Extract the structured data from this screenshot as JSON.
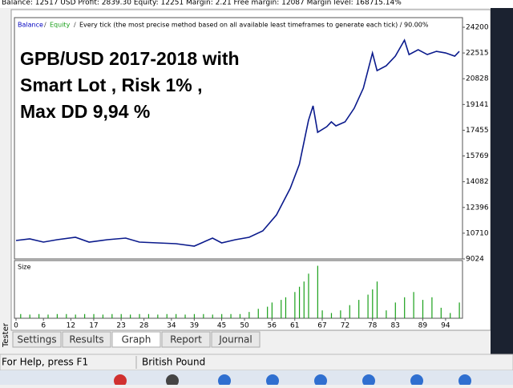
{
  "top_bar": "Balance: 12517 USD  Profit: 2839.30  Equity: 12251  Margin: 2.21  Free margin: 12087  Margin level: 168715.14%",
  "chart_data": [
    {
      "type": "line",
      "equity_label": "Equity",
      "title": "Every tick (the most precise method based on all available least timeframes to generate each tick) / 90.00%",
      "x": [
        0,
        3,
        6,
        9,
        13,
        16,
        20,
        24,
        27,
        31,
        35,
        39,
        43,
        45,
        48,
        51,
        54,
        57,
        60,
        62,
        64,
        65,
        66,
        68,
        69,
        70,
        72,
        74,
        76,
        78,
        79,
        81,
        83,
        85,
        86,
        88,
        90,
        92,
        94,
        96,
        97
      ],
      "series": [
        {
          "name": "Balance",
          "color": "#0a1a8c",
          "values": [
            10232,
            10337,
            10127,
            10284,
            10442,
            10127,
            10284,
            10389,
            10127,
            10074,
            10022,
            9864,
            10389,
            10074,
            10284,
            10442,
            10862,
            11912,
            13644,
            15219,
            18107,
            19052,
            17319,
            17687,
            18002,
            17739,
            18002,
            18894,
            20207,
            22517,
            21362,
            21677,
            22307,
            23357,
            22412,
            22727,
            22412,
            22622,
            22517,
            22307,
            22622
          ]
        }
      ],
      "xlim": [
        -0.35,
        97.7
      ],
      "xticks": [
        0,
        6,
        12,
        17,
        23,
        28,
        34,
        39,
        45,
        50,
        56,
        61,
        67,
        72,
        78,
        83,
        89,
        94
      ],
      "ylim": [
        9024,
        24830
      ],
      "yticks": [
        24200,
        22515,
        20828,
        19141,
        17455,
        15769,
        14082,
        12396,
        10710,
        9024
      ],
      "annotation": [
        "GPB/USD 2017-2018  with",
        "Smart Lot  , Risk 1% ,",
        "Max DD 9,94 %"
      ]
    },
    {
      "type": "bar",
      "title": "Size",
      "color": "#1aa01a",
      "x": [
        1,
        3,
        5,
        7,
        9,
        11,
        13,
        15,
        17,
        19,
        21,
        23,
        25,
        27,
        29,
        31,
        33,
        35,
        37,
        39,
        41,
        43,
        45,
        47,
        49,
        51,
        53,
        55,
        56,
        58,
        59,
        61,
        62,
        63,
        64,
        66,
        67,
        69,
        71,
        73,
        75,
        77,
        78,
        79,
        81,
        83,
        85,
        87,
        89,
        91,
        93,
        95,
        97
      ],
      "values": [
        0.08,
        0.07,
        0.08,
        0.07,
        0.08,
        0.08,
        0.07,
        0.08,
        0.08,
        0.07,
        0.08,
        0.08,
        0.07,
        0.08,
        0.08,
        0.07,
        0.08,
        0.08,
        0.07,
        0.08,
        0.08,
        0.07,
        0.08,
        0.08,
        0.08,
        0.12,
        0.18,
        0.22,
        0.3,
        0.35,
        0.4,
        0.5,
        0.6,
        0.7,
        0.85,
        1.0,
        0.15,
        0.1,
        0.15,
        0.25,
        0.35,
        0.45,
        0.55,
        0.7,
        0.15,
        0.3,
        0.4,
        0.5,
        0.35,
        0.4,
        0.2,
        0.1,
        0.3
      ],
      "ylim": [
        0,
        1.1
      ]
    }
  ],
  "side_label": "Tester",
  "tabs": [
    "Settings",
    "Results",
    "Graph",
    "Report",
    "Journal"
  ],
  "active_tab": 2,
  "status_bar": [
    "For Help, press F1",
    "British Pound"
  ]
}
